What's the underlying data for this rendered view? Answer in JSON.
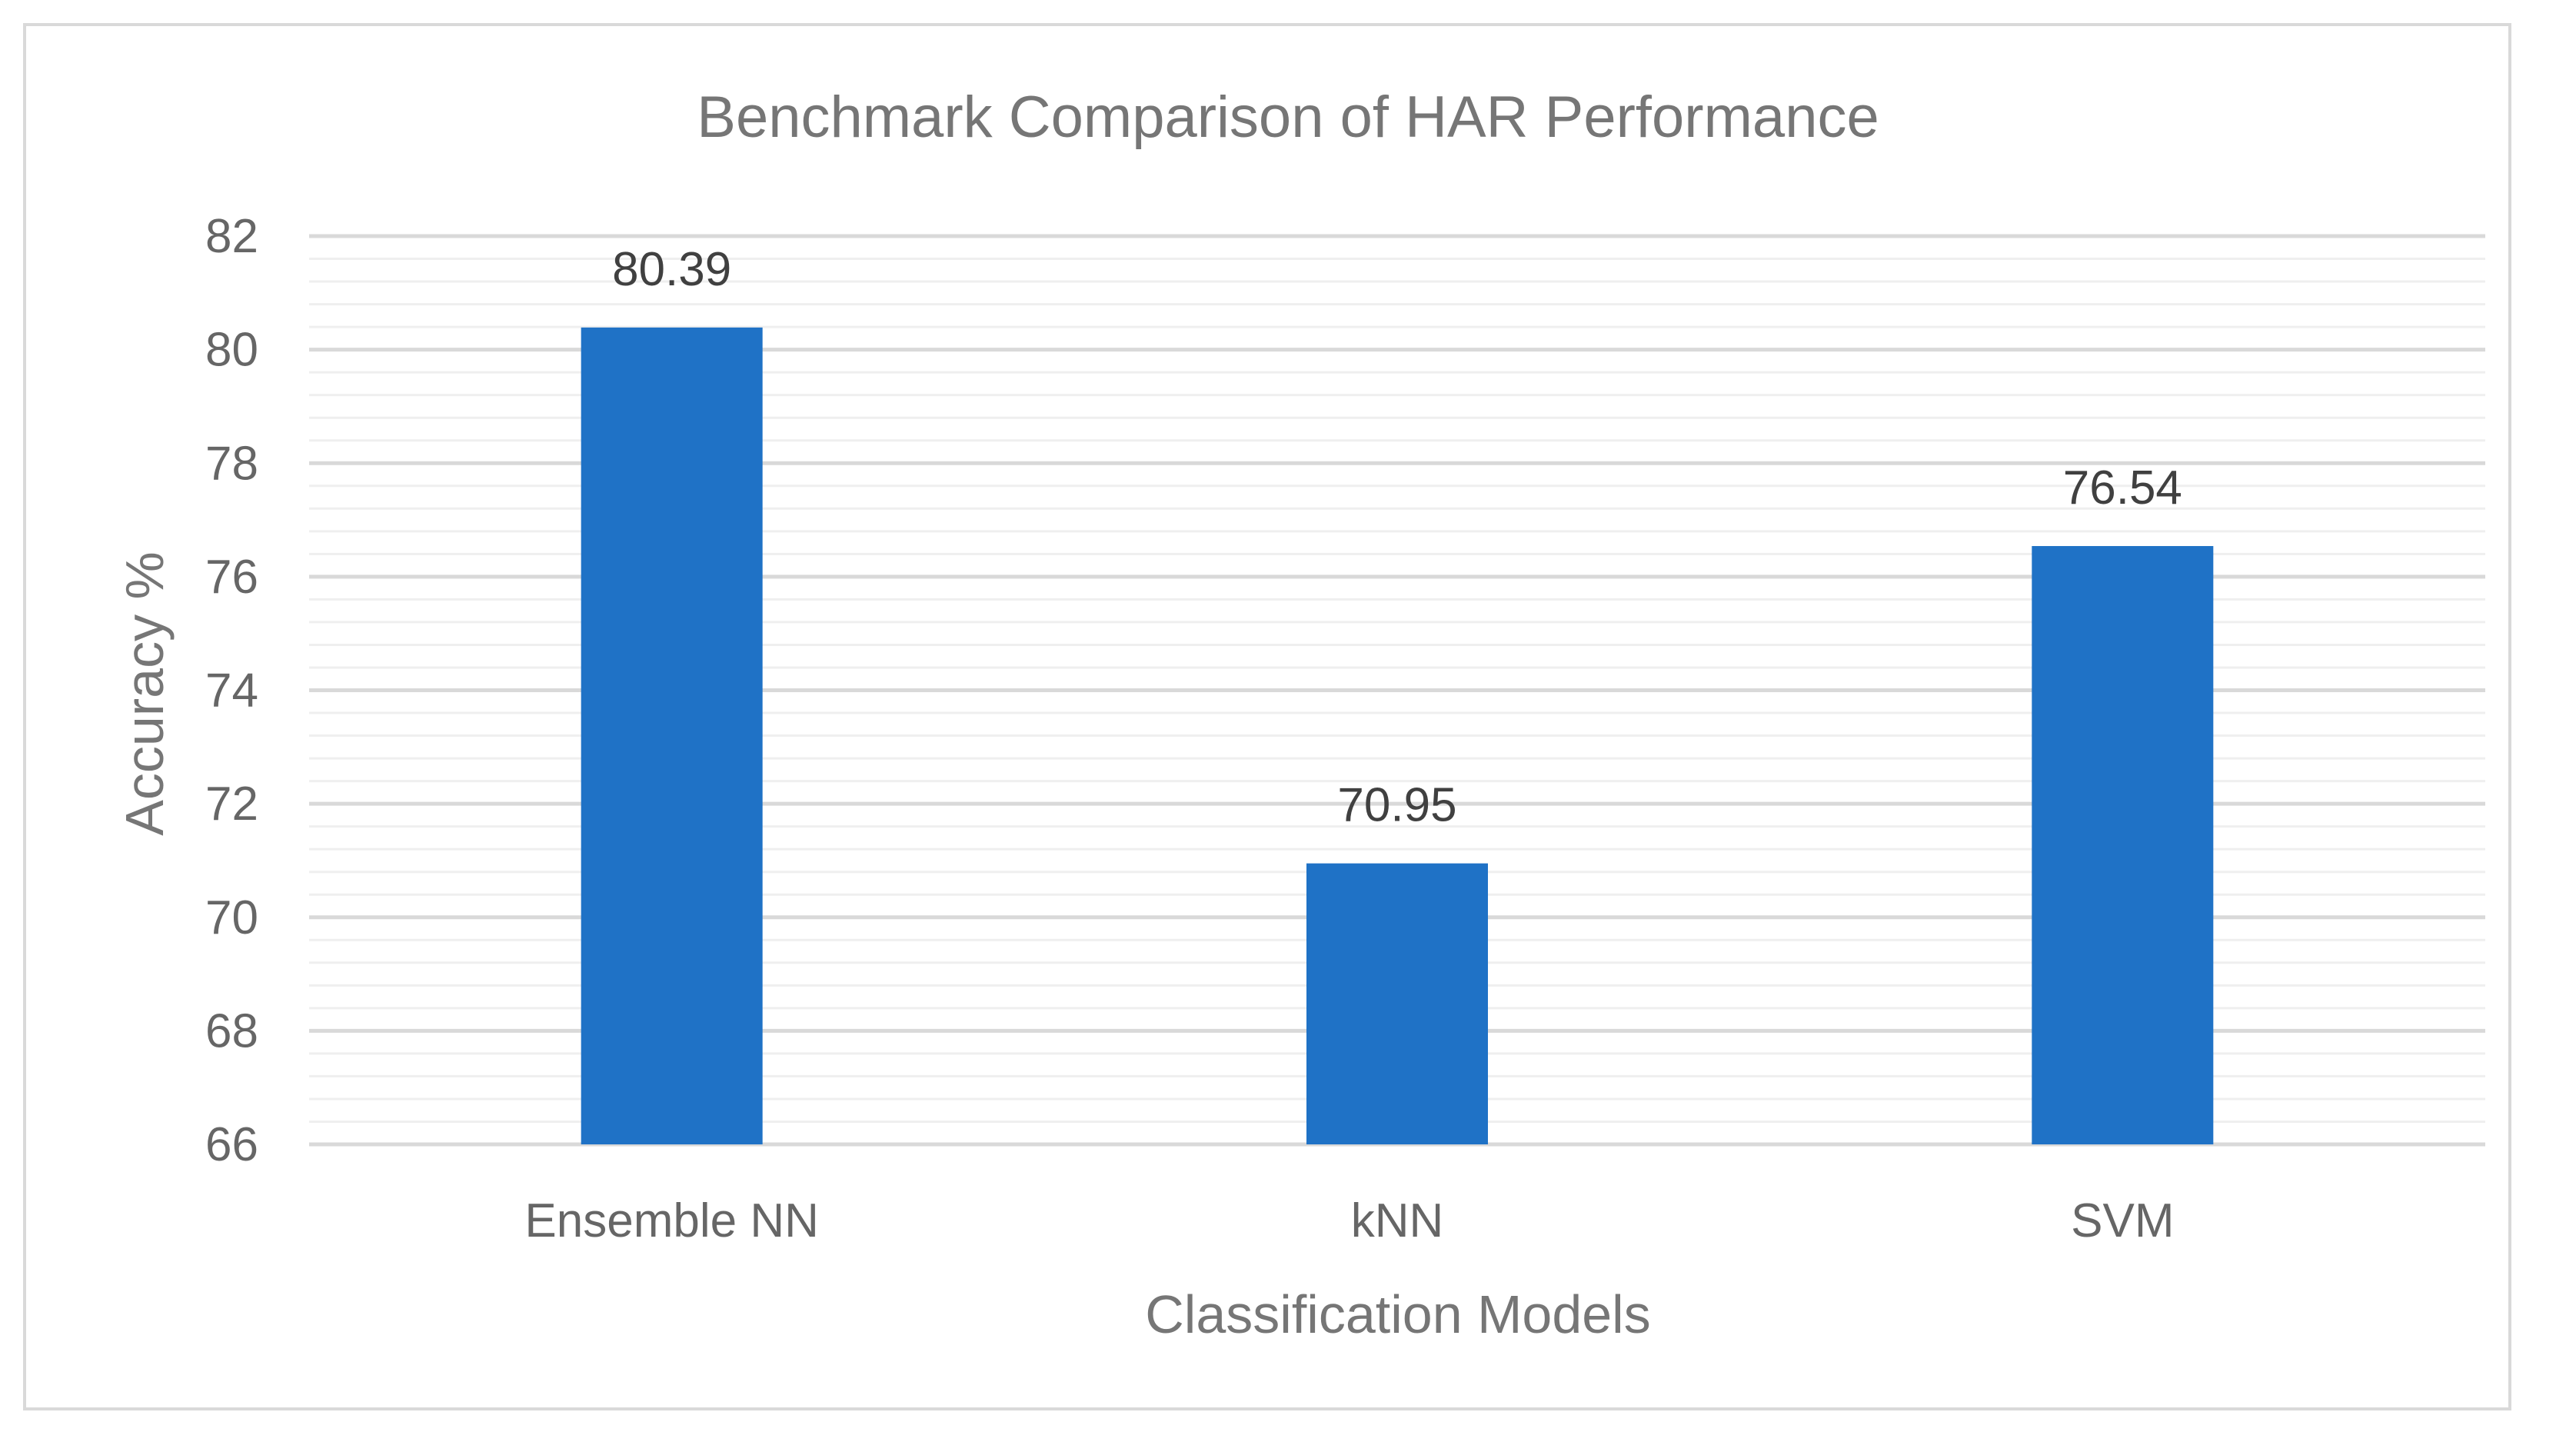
{
  "chart_data": {
    "type": "bar",
    "title": "Benchmark Comparison of HAR Performance",
    "xlabel": "Classification Models",
    "ylabel": "Accuracy %",
    "categories": [
      "Ensemble NN",
      "kNN",
      "SVM"
    ],
    "values": [
      80.39,
      70.95,
      76.54
    ],
    "data_labels": [
      "80.39",
      "70.95",
      "76.54"
    ],
    "ylim": [
      66,
      82
    ],
    "yticks": [
      66,
      68,
      70,
      72,
      74,
      76,
      78,
      80,
      82
    ],
    "minor_grid_step": 0.4,
    "grid": true,
    "legend": "none",
    "bar_color": "#1f72c6",
    "major_grid_color": "#d9d9d9",
    "minor_grid_color": "#efefef"
  }
}
